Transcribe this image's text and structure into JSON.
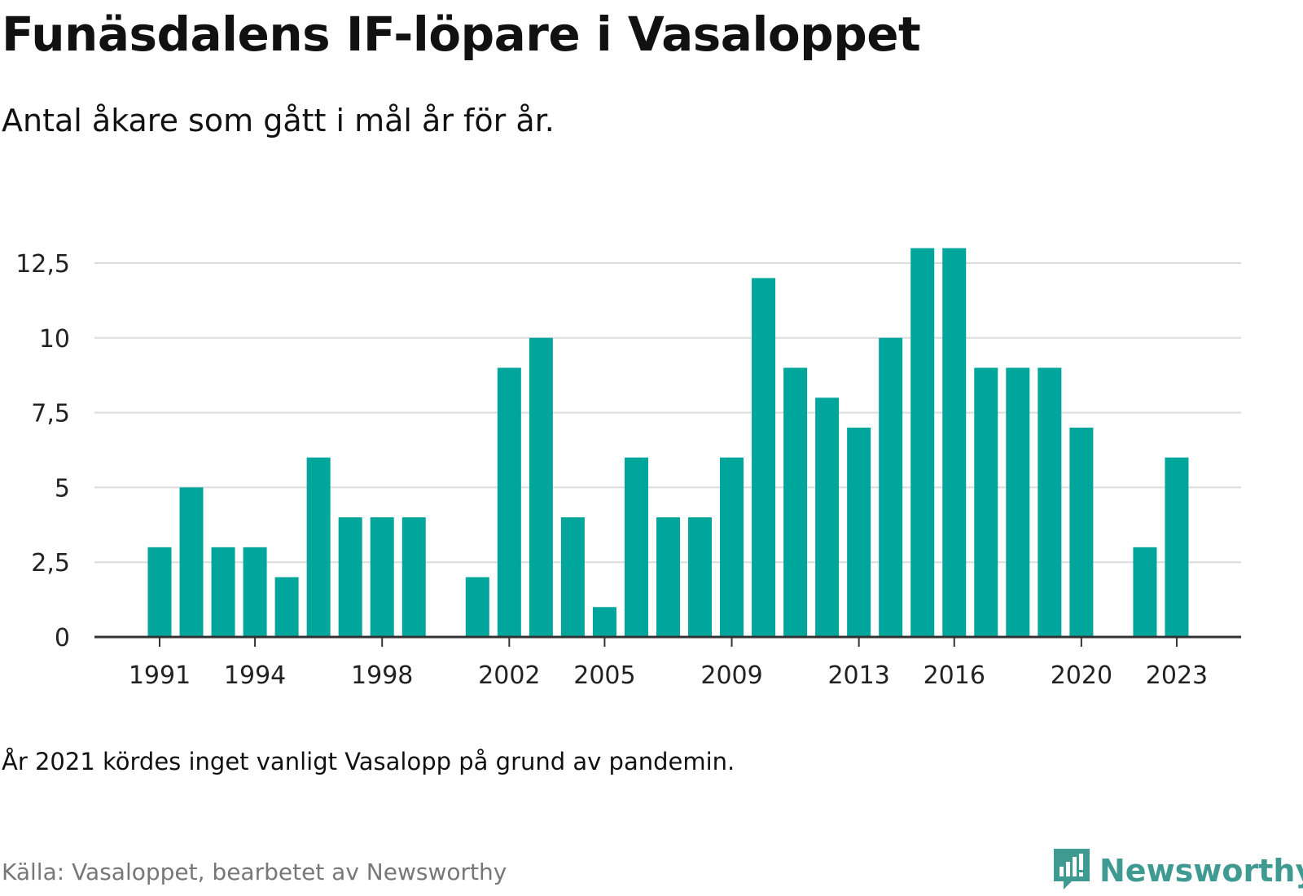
{
  "title": "Funäsdalens IF-löpare i Vasaloppet",
  "subtitle": "Antal åkare som gått i mål år för år.",
  "note": "År 2021 kördes inget vanligt Vasalopp på grund av pandemin.",
  "source": "Källa: Vasaloppet, bearbetet av Newsworthy",
  "brand": {
    "name": "Newsworthy",
    "icon": "newsworthy-logo-icon",
    "color": "#3f9a92"
  },
  "chart_data": {
    "type": "bar",
    "title": "Funäsdalens IF-löpare i Vasaloppet",
    "subtitle": "Antal åkare som gått i mål år för år.",
    "xlabel": "",
    "ylabel": "",
    "bar_color": "#00a59b",
    "grid": true,
    "ylim": [
      0,
      13.5
    ],
    "y_ticks": [
      0,
      2.5,
      5,
      7.5,
      10,
      12.5
    ],
    "y_tick_labels": [
      "0",
      "2,5",
      "5",
      "7,5",
      "10",
      "12,5"
    ],
    "x_tick_labels": [
      "1991",
      "1994",
      "1998",
      "2002",
      "2005",
      "2009",
      "2013",
      "2016",
      "2020",
      "2023"
    ],
    "categories": [
      "1991",
      "1992",
      "1993",
      "1994",
      "1995",
      "1996",
      "1997",
      "1998",
      "1999",
      "2000",
      "2001",
      "2002",
      "2003",
      "2004",
      "2005",
      "2006",
      "2007",
      "2008",
      "2009",
      "2010",
      "2011",
      "2012",
      "2013",
      "2014",
      "2015",
      "2016",
      "2017",
      "2018",
      "2019",
      "2020",
      "2021",
      "2022",
      "2023"
    ],
    "values": [
      3,
      5,
      3,
      3,
      2,
      6,
      4,
      4,
      4,
      null,
      2,
      9,
      10,
      4,
      1,
      6,
      4,
      4,
      6,
      12,
      9,
      8,
      7,
      10,
      13,
      13,
      9,
      9,
      9,
      7,
      null,
      3,
      6
    ]
  }
}
